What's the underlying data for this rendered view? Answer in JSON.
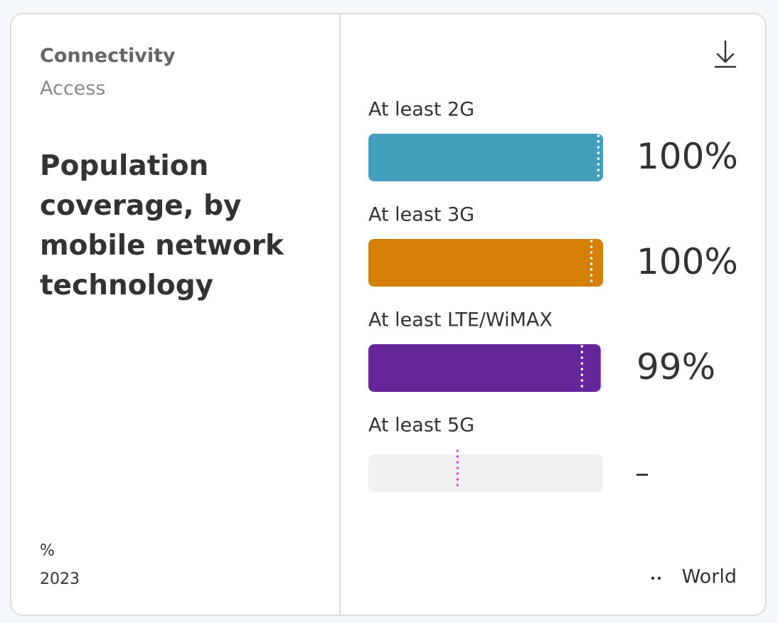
{
  "chart_data": {
    "type": "bar",
    "orientation": "horizontal",
    "section": "Connectivity",
    "subsection": "Access",
    "title": "Population coverage, by mobile network technology",
    "unit": "%",
    "year": "2023",
    "categories": [
      "At least 2G",
      "At least 3G",
      "At least LTE/WiMAX",
      "At least 5G"
    ],
    "values": [
      100,
      100,
      99,
      null
    ],
    "value_labels": [
      "100%",
      "100%",
      "99%",
      "–"
    ],
    "colors": [
      "#419fbb",
      "#d48007",
      "#65269a",
      "#8a8a8a"
    ],
    "xlim": [
      0,
      100
    ],
    "reference": {
      "name": "World",
      "values": [
        98,
        95,
        91,
        38
      ],
      "color": "#ffffff",
      "empty_color": "#d64fd1"
    }
  }
}
